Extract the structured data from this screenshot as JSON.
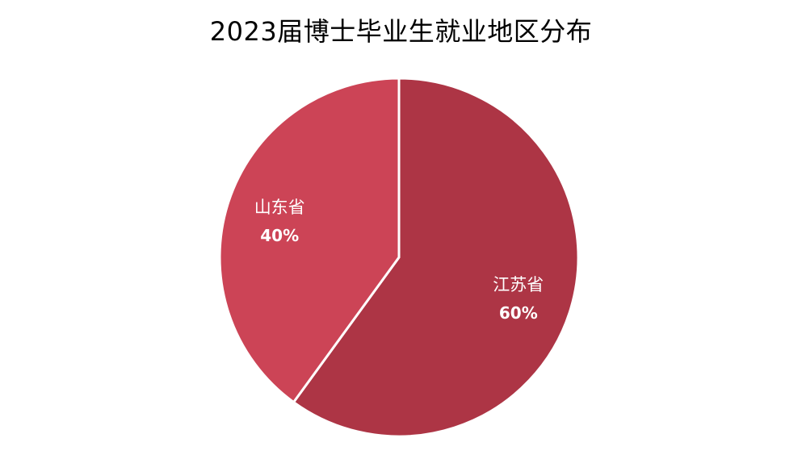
{
  "chart_data": {
    "type": "pie",
    "title": "2023届博士毕业生就业地区分布",
    "categories": [
      "江苏省",
      "山东省"
    ],
    "values": [
      60,
      40
    ],
    "data_labels": [
      "60%",
      "40%"
    ],
    "colors": [
      "#ad3545",
      "#cc4456"
    ],
    "start_angle_deg": 0,
    "direction": "clockwise",
    "legend": "none"
  }
}
